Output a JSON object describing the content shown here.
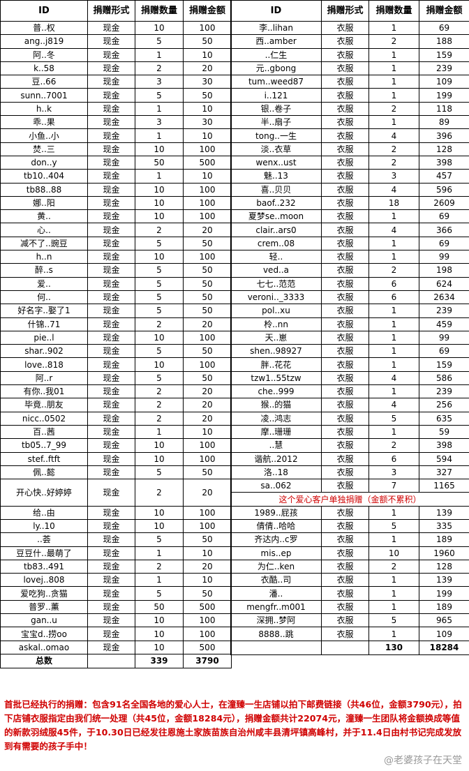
{
  "left": {
    "header": [
      "ID",
      "捐赠形式",
      "捐赠数量",
      "捐赠金额"
    ],
    "rows": [
      [
        "普..权",
        "现金",
        10,
        100
      ],
      [
        "ang..j819",
        "现金",
        5,
        50
      ],
      [
        "阿..冬",
        "现金",
        1,
        10
      ],
      [
        "k..58",
        "现金",
        2,
        20
      ],
      [
        "豆..66",
        "现金",
        3,
        30
      ],
      [
        "sunn..7001",
        "现金",
        5,
        50
      ],
      [
        "h..k",
        "现金",
        1,
        10
      ],
      [
        "乖..果",
        "现金",
        3,
        30
      ],
      [
        "小鱼..小",
        "现金",
        1,
        10
      ],
      [
        "焚..三",
        "现金",
        10,
        100
      ],
      [
        "don..y",
        "现金",
        50,
        500
      ],
      [
        "tb10..404",
        "现金",
        1,
        10
      ],
      [
        "tb88..88",
        "现金",
        10,
        100
      ],
      [
        "娜..阳",
        "现金",
        10,
        100
      ],
      [
        "黄..",
        "现金",
        10,
        100
      ],
      [
        "心..",
        "现金",
        2,
        20
      ],
      [
        "减不了..豌豆",
        "现金",
        5,
        50
      ],
      [
        "h..n",
        "现金",
        10,
        100
      ],
      [
        "醉..s",
        "现金",
        5,
        50
      ],
      [
        "爱..",
        "现金",
        5,
        50
      ],
      [
        "何..",
        "现金",
        5,
        50
      ],
      [
        "好名字..娶了1",
        "现金",
        5,
        50
      ],
      [
        "什锦..71",
        "现金",
        2,
        20
      ],
      [
        "pie..l",
        "现金",
        10,
        100
      ],
      [
        "shar..902",
        "现金",
        5,
        50
      ],
      [
        "love..818",
        "现金",
        10,
        100
      ],
      [
        "阿..r",
        "现金",
        5,
        50
      ],
      [
        "有你..我01",
        "现金",
        2,
        20
      ],
      [
        "毕竟..朋友",
        "现金",
        2,
        20
      ],
      [
        "nicc..0502",
        "现金",
        2,
        20
      ],
      [
        "百..茜",
        "现金",
        1,
        10
      ],
      [
        "tb05..7_99",
        "现金",
        10,
        100
      ],
      [
        "stef..ftft",
        "现金",
        10,
        100
      ],
      [
        "佩..懿",
        "现金",
        5,
        50
      ],
      [
        "开心快..好婷婷",
        "现金",
        2,
        20
      ],
      [
        "给..由",
        "现金",
        10,
        100
      ],
      [
        "ly..10",
        "现金",
        10,
        100
      ],
      [
        "..荟",
        "现金",
        5,
        50
      ],
      [
        "豆豆什..最萌了",
        "现金",
        1,
        10
      ],
      [
        "tb83..491",
        "现金",
        2,
        20
      ],
      [
        "lovej..808",
        "现金",
        1,
        10
      ],
      [
        "爱吃狗..贪猫",
        "现金",
        5,
        50
      ],
      [
        "普罗..薰",
        "现金",
        50,
        500
      ],
      [
        "gan..u",
        "现金",
        10,
        100
      ],
      [
        "宝宝d..捞oo",
        "现金",
        10,
        100
      ],
      [
        "askal..omao",
        "现金",
        10,
        500
      ]
    ],
    "total": [
      "总数",
      339,
      3790
    ]
  },
  "right": {
    "header": [
      "ID",
      "捐赠形式",
      "捐赠数量",
      "捐赠金额"
    ],
    "rows": [
      [
        "李..lihan",
        "衣服",
        1,
        69
      ],
      [
        "西..amber",
        "衣服",
        2,
        188
      ],
      [
        "..仁生",
        "衣服",
        1,
        159
      ],
      [
        "元..gbong",
        "衣服",
        1,
        239
      ],
      [
        "tum..weed87",
        "衣服",
        1,
        109
      ],
      [
        "i..121",
        "衣服",
        1,
        199
      ],
      [
        "银..卷子",
        "衣服",
        2,
        118
      ],
      [
        "半..扇子",
        "衣服",
        1,
        89
      ],
      [
        "tong..一生",
        "衣服",
        4,
        396
      ],
      [
        "淡..衣草",
        "衣服",
        2,
        128
      ],
      [
        "wenx..ust",
        "衣服",
        2,
        398
      ],
      [
        "魅..13",
        "衣服",
        3,
        457
      ],
      [
        "喜..贝贝",
        "衣服",
        4,
        596
      ],
      [
        "baof..232",
        "衣服",
        18,
        2609
      ],
      [
        "夏梦se..moon",
        "衣服",
        1,
        69
      ],
      [
        "clair..ars0",
        "衣服",
        4,
        366
      ],
      [
        "crem..08",
        "衣服",
        1,
        69
      ],
      [
        "轻..",
        "衣服",
        1,
        99
      ],
      [
        "ved..a",
        "衣服",
        2,
        198
      ],
      [
        "七七..范范",
        "衣服",
        6,
        624
      ],
      [
        "veroni.._3333",
        "衣服",
        6,
        2634
      ],
      [
        "pol..xu",
        "衣服",
        1,
        239
      ],
      [
        "柃..nn",
        "衣服",
        1,
        459
      ],
      [
        "天..崽",
        "衣服",
        1,
        99
      ],
      [
        "shen..98927",
        "衣服",
        1,
        69
      ],
      [
        "胖..花花",
        "衣服",
        1,
        159
      ],
      [
        "tzw1..55tzw",
        "衣服",
        4,
        586
      ],
      [
        "che..999",
        "衣服",
        1,
        239
      ],
      [
        "猴..的猫",
        "衣服",
        4,
        256
      ],
      [
        "凌..鸿志",
        "衣服",
        5,
        635
      ],
      [
        "摩..珊珊",
        "衣服",
        1,
        59
      ],
      [
        "..慧",
        "衣服",
        2,
        398
      ],
      [
        "谐航..2012",
        "衣服",
        6,
        594
      ],
      [
        "洛..18",
        "衣服",
        3,
        327
      ],
      [
        "sa..062",
        "衣服",
        7,
        1165
      ],
      [
        "1989..屁孩",
        "衣服",
        1,
        139
      ],
      [
        "倩倩..哈哈",
        "衣服",
        5,
        335
      ],
      [
        "齐达内..c罗",
        "衣服",
        1,
        189
      ],
      [
        "mis..ep",
        "衣服",
        10,
        1960
      ],
      [
        "为仁..ken",
        "衣服",
        2,
        128
      ],
      [
        "衣酷..司",
        "衣服",
        1,
        139
      ],
      [
        "潘..",
        "衣服",
        1,
        199
      ],
      [
        "mengfr..m001",
        "衣服",
        1,
        189
      ],
      [
        "深拥..梦阿",
        "衣服",
        5,
        965
      ],
      [
        "8888..跳",
        "衣服",
        1,
        109
      ]
    ],
    "note": "这个爱心客户单独捐赠（金额不累积）",
    "total": [
      "",
      130,
      18284
    ]
  },
  "footer": "首批已经执行的捐赠：包含91名全国各地的爱心人士，在潼臻一生店铺以拍下邮费链接（共46位，金额3790元），拍下店铺衣服指定由我们统一处理（共45位，金额18284元），捐赠金额共计22074元，潼臻一生团队将金额换成等值的新款羽绒服45件，于10.30日已经发往恩施土家族苗族自治州咸丰县清坪镇高峰村，并于11.4日由村书记完成发放到有需要的孩子手中！",
  "watermark": "@老婆孩子在天堂"
}
